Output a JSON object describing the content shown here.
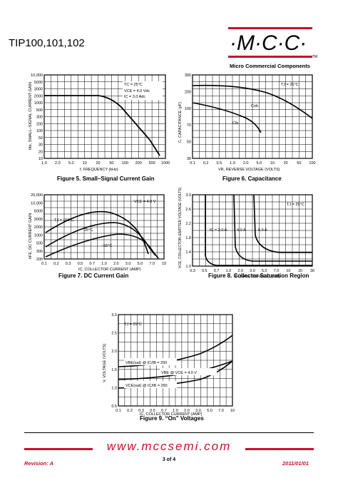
{
  "header": {
    "part_numbers": "TIP100,101,102",
    "logo_text": "·M·C·C·",
    "logo_tm": "TM",
    "logo_subtitle": "Micro Commercial Components"
  },
  "colors": {
    "brand_red": "#c8102e",
    "line": "#000000"
  },
  "figures": {
    "fig5": {
      "caption": "Figure 5. Small–Signal Current Gain",
      "ylabel": "hfe, SMALL–SIGNAL CURRENT GAIN",
      "xlabel": "f, FREQUENCY (kHz)",
      "yticks": [
        "10,000",
        "5000",
        "3000",
        "2000",
        "1000",
        "500",
        "300",
        "200",
        "100",
        "50",
        "30",
        "20",
        "10"
      ],
      "xticks": [
        "1.0",
        "2.0",
        "5.0",
        "10",
        "20",
        "50",
        "100",
        "200",
        "500",
        "1000"
      ],
      "conditions": [
        "TC = 25°C",
        "VCE = 4.0 Vdc",
        "IC = 3.0 Adc"
      ]
    },
    "fig6": {
      "caption": "Figure 6. Capacitance",
      "ylabel": "C, CAPACITANCE (pF)",
      "xlabel": "VR, REVERSE VOLTAGE (VOLTS)",
      "yticks": [
        "300",
        "200",
        "100",
        "70",
        "50",
        "30"
      ],
      "xticks": [
        "0.1",
        "0.2",
        "0.5",
        "1.0",
        "2.0",
        "5.0",
        "10",
        "20",
        "50",
        "100"
      ],
      "conditions": [
        "TJ = 25°C"
      ],
      "series_labels": [
        "Cob",
        "Cib"
      ]
    },
    "fig7": {
      "caption": "Figure 7. DC Current Gain",
      "ylabel": "hFE, DC CURRENT GAIN",
      "xlabel": "IC, COLLECTOR CURRENT (AMP)",
      "yticks": [
        "20,000",
        "10,000",
        "5000",
        "3000",
        "2000",
        "1000",
        "500",
        "300",
        "200"
      ],
      "xticks": [
        "0.1",
        "0.2",
        "0.3",
        "0.5",
        "0.7",
        "1.0",
        "2.0",
        "3.0",
        "5.0",
        "7.0",
        "10"
      ],
      "conditions": [
        "VCE = 4.0 V"
      ],
      "series_labels": [
        "TJ = 150°C",
        "25°C",
        "–55°C"
      ]
    },
    "fig8": {
      "caption": "Figure 8. Collector Saturation Region",
      "ylabel": "VCE, COLLECTOR–EMITTER VOLTAGE (VOLTS)",
      "xlabel": "IB, BASE CURRENT (mA)",
      "yticks": [
        "3.0",
        "2.6",
        "2.2",
        "1.8",
        "1.4",
        "1.0"
      ],
      "xticks": [
        "0.3",
        "0.5",
        "0.7",
        "1.0",
        "2.0",
        "3.0",
        "5.0",
        "7.0",
        "10",
        "20",
        "30"
      ],
      "conditions": [
        "TJ = 25°C"
      ],
      "series_labels": [
        "IC = 2.0 A",
        "4.0 A",
        "6.0 A"
      ]
    },
    "fig9": {
      "caption": "Figure 9. “On” Voltages",
      "ylabel": "V, VOLTAGE (VOLTS)",
      "xlabel": "IC, COLLECTOR CURRENT (AMP)",
      "yticks": [
        "3.0",
        "2.5",
        "2.0",
        "1.5",
        "1.0",
        "0.5"
      ],
      "xticks": [
        "0.1",
        "0.2",
        "0.3",
        "0.5",
        "0.7",
        "1.0",
        "2.0",
        "3.0",
        "5.0",
        "7.0",
        "10"
      ],
      "conditions": [
        "TJ = 25°C"
      ],
      "series_labels": [
        "VBE(sat) @ IC/IB = 250",
        "VBE @ VCE = 4.0 V",
        "VCE(sat) @ IC/IB = 250"
      ]
    }
  },
  "footer": {
    "url": "www.mccsemi.com",
    "revision": "Revision: A",
    "page": "3 of 4",
    "date": "2011/01/01"
  }
}
